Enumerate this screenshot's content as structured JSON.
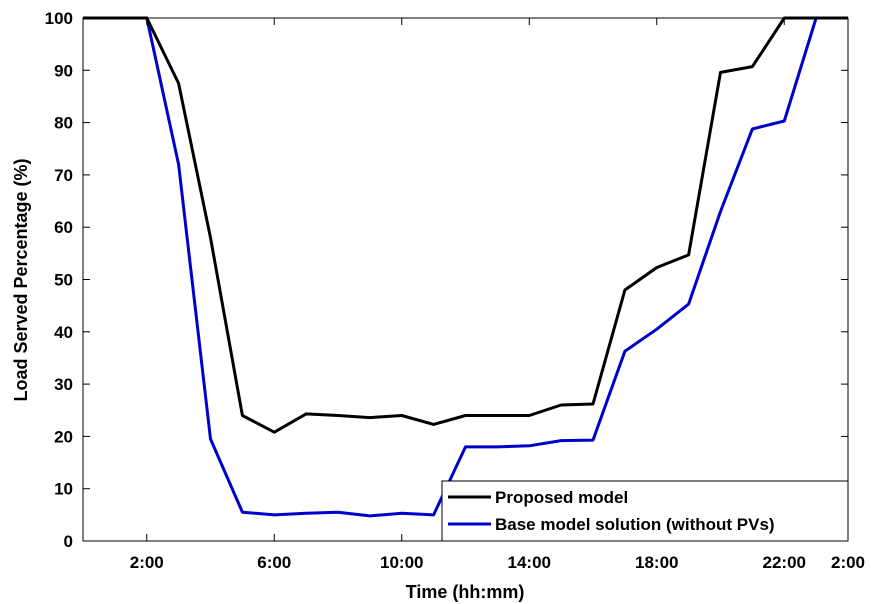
{
  "chart_data": {
    "type": "line",
    "xlabel": "Time (hh:mm)",
    "ylabel": "Load Served Percentage (%)",
    "xlim": [
      1,
      25
    ],
    "ylim": [
      0,
      100
    ],
    "x_ticks": [
      {
        "value": 3,
        "label": "2:00"
      },
      {
        "value": 7,
        "label": "6:00"
      },
      {
        "value": 11,
        "label": "10:00"
      },
      {
        "value": 15,
        "label": "14:00"
      },
      {
        "value": 19,
        "label": "18:00"
      },
      {
        "value": 23,
        "label": "22:00"
      },
      {
        "value": 27,
        "label": "2:00"
      }
    ],
    "y_ticks": [
      0,
      10,
      20,
      30,
      40,
      50,
      60,
      70,
      80,
      90,
      100
    ],
    "grid": false,
    "legend_position": "bottom-right",
    "x_domain_note": "",
    "x": [
      1,
      2,
      3,
      4,
      5,
      6,
      7,
      8,
      9,
      10,
      11,
      12,
      13,
      14,
      15,
      16,
      17,
      18,
      19,
      20,
      21,
      22,
      23,
      24,
      25
    ],
    "series": [
      {
        "name": "Proposed model",
        "color": "#000000",
        "values": [
          100,
          100,
          100,
          87.5,
          58,
          24,
          20.8,
          24.3,
          24,
          23.6,
          24,
          22.3,
          24,
          24,
          24,
          26,
          26.2,
          48,
          52.3,
          54.7,
          89.6,
          90.7,
          100,
          100,
          100
        ]
      },
      {
        "name": "Base model solution (without PVs)",
        "color": "#0000cc",
        "values": [
          100,
          100,
          100,
          72,
          19.5,
          5.5,
          5,
          5.3,
          5.5,
          4.8,
          5.3,
          5,
          18,
          18,
          18.2,
          19.2,
          19.3,
          36.3,
          40.5,
          45.3,
          63,
          78.8,
          80.3,
          100,
          100
        ]
      }
    ]
  }
}
